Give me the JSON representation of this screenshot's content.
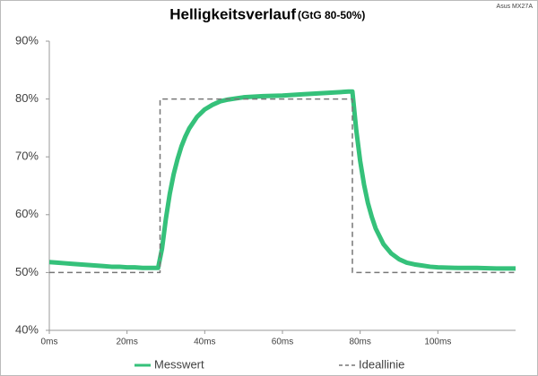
{
  "chart_data": {
    "type": "line",
    "title": "Helligkeitsverlauf",
    "subtitle": "(GtG 80-50%)",
    "annotation": "Asus MX27A",
    "series": [
      {
        "name": "Messwert",
        "color": "#35c17a",
        "style": "solid",
        "x": [
          0,
          2,
          4,
          6,
          8,
          10,
          12,
          14,
          16,
          18,
          20,
          22,
          24,
          26,
          28,
          29,
          30,
          31,
          32,
          33,
          34,
          35,
          36,
          38,
          40,
          42,
          44,
          46,
          48,
          50,
          55,
          60,
          65,
          70,
          75,
          77,
          78,
          79,
          80,
          81,
          82,
          83,
          84,
          86,
          88,
          90,
          92,
          94,
          96,
          98,
          100,
          105,
          110,
          115,
          120
        ],
        "values": [
          51.8,
          51.7,
          51.6,
          51.5,
          51.4,
          51.3,
          51.2,
          51.1,
          51.0,
          51.0,
          50.9,
          50.9,
          50.8,
          50.8,
          50.8,
          54.1,
          59.3,
          63.6,
          67.0,
          69.6,
          71.8,
          73.5,
          74.9,
          76.9,
          78.2,
          79.0,
          79.6,
          79.9,
          80.1,
          80.3,
          80.5,
          80.6,
          80.8,
          81.0,
          81.2,
          81.3,
          81.3,
          74.6,
          69.3,
          65.2,
          62.0,
          59.6,
          57.6,
          54.9,
          53.3,
          52.3,
          51.7,
          51.4,
          51.2,
          51.0,
          50.9,
          50.8,
          50.8,
          50.7,
          50.7
        ]
      },
      {
        "name": "Ideallinie",
        "color": "#777777",
        "style": "dashed",
        "x": [
          0,
          28.5,
          28.5,
          78,
          78,
          120
        ],
        "values": [
          50,
          50,
          80,
          80,
          50,
          50
        ]
      }
    ],
    "xlim": [
      0,
      120
    ],
    "xticks": [
      {
        "value": 0,
        "label": "0ms"
      },
      {
        "value": 20,
        "label": "20ms"
      },
      {
        "value": 40,
        "label": "40ms"
      },
      {
        "value": 60,
        "label": "60ms"
      },
      {
        "value": 80,
        "label": "80ms"
      },
      {
        "value": 100,
        "label": "100ms"
      }
    ],
    "ylim": [
      40,
      90
    ],
    "yticks": [
      {
        "value": 40,
        "label": "40%"
      },
      {
        "value": 50,
        "label": "50%"
      },
      {
        "value": 60,
        "label": "60%"
      },
      {
        "value": 70,
        "label": "70%"
      },
      {
        "value": 80,
        "label": "80%"
      },
      {
        "value": 90,
        "label": "90%"
      }
    ]
  }
}
